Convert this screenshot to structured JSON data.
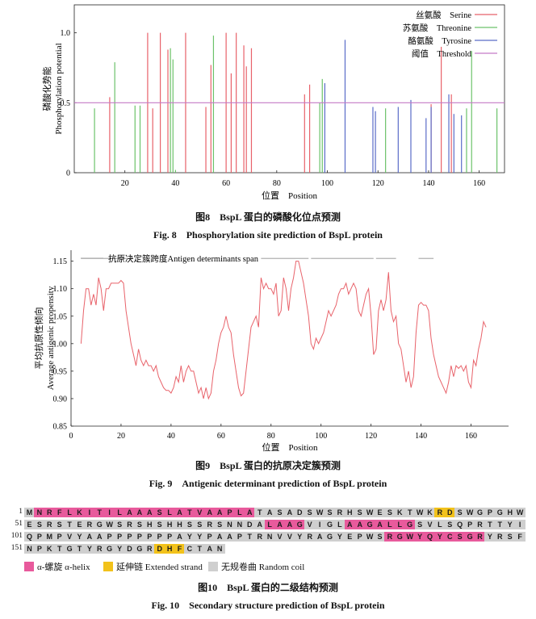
{
  "figures": [
    {
      "caption_cn": "图8　BspL 蛋白的磷酸化位点预测",
      "caption_en": "Fig. 8　Phosphorylation site prediction of BspL protein",
      "chart_data": {
        "type": "bar",
        "xlabel": "位置　Position",
        "ylabel_cn": "磷酸化势能",
        "ylabel_en": "Phosphorylation potential",
        "xticks": [
          20,
          40,
          60,
          80,
          100,
          120,
          140,
          160
        ],
        "yticks": [
          "0",
          "0.5",
          "1.0"
        ],
        "xlim": [
          0,
          170
        ],
        "ylim": [
          0,
          1.2
        ],
        "threshold": 0.5,
        "legend": [
          "丝氨酸　Serine",
          "苏氨酸　Threonine",
          "酪氨酸　Tyrosine",
          "阈值　Threshold"
        ],
        "colors": {
          "serine": "#e8626a",
          "threonine": "#6cc26a",
          "tyrosine": "#5a6cc8",
          "threshold": "#c47ac6"
        },
        "series": [
          {
            "name": "丝氨酸　Serine",
            "x": [
              14,
              29,
              31,
              34,
              37,
              44,
              52,
              54,
              60,
              62,
              64,
              67,
              68,
              70,
              91,
              93,
              141,
              145,
              149
            ],
            "values": [
              0.54,
              1.0,
              0.46,
              1.0,
              0.88,
              1.0,
              0.47,
              0.77,
              1.0,
              0.71,
              1.0,
              0.91,
              0.76,
              0.89,
              0.56,
              0.63,
              0.49,
              0.9,
              0.56
            ]
          },
          {
            "name": "苏氨酸　Threonine",
            "x": [
              8,
              16,
              24,
              26,
              38,
              39,
              40,
              55,
              97,
              98,
              99,
              123,
              155,
              157,
              167
            ],
            "values": [
              0.46,
              0.79,
              0.48,
              0.48,
              0.89,
              0.81,
              0.02,
              0.98,
              0.5,
              0.67,
              0.01,
              0.46,
              0.46,
              0.87,
              0.46
            ]
          },
          {
            "name": "酪氨酸　Tyrosine",
            "x": [
              99,
              107,
              118,
              119,
              128,
              133,
              139,
              141,
              148,
              150,
              153
            ],
            "values": [
              0.64,
              0.95,
              0.47,
              0.44,
              0.47,
              0.52,
              0.39,
              0.47,
              0.56,
              0.42,
              0.41
            ]
          }
        ]
      }
    },
    {
      "caption_cn": "图9　BspL 蛋白的抗原决定簇预测",
      "caption_en": "Fig. 9　Antigenic determinant prediction of BspL protein",
      "chart_data": {
        "type": "line",
        "xlabel": "位置　Position",
        "ylabel_cn": "平均抗原性倾向",
        "ylabel_en": "Average antigenic propensity",
        "legend": "抗原决定簇跨度Antigen determinants span",
        "xticks": [
          0,
          20,
          40,
          60,
          80,
          100,
          120,
          140,
          160
        ],
        "yticks": [
          "0.85",
          "0.90",
          "0.95",
          "1.00",
          "1.05",
          "1.10",
          "1.15"
        ],
        "xlim": [
          0,
          175
        ],
        "ylim": [
          0.85,
          1.17
        ],
        "colors": {
          "line": "#e8626a",
          "span": "#b0b0b0"
        },
        "spans": [
          [
            4,
            24
          ],
          [
            76,
            95
          ],
          [
            96,
            121
          ],
          [
            122,
            130
          ],
          [
            139,
            145
          ]
        ],
        "x": [
          4,
          5,
          6,
          7,
          8,
          9,
          10,
          11,
          12,
          13,
          14,
          15,
          16,
          17,
          18,
          19,
          20,
          21,
          22,
          23,
          24,
          25,
          26,
          27,
          28,
          29,
          30,
          31,
          32,
          33,
          34,
          35,
          36,
          37,
          38,
          39,
          40,
          41,
          42,
          43,
          44,
          45,
          46,
          47,
          48,
          49,
          50,
          51,
          52,
          53,
          54,
          55,
          56,
          57,
          58,
          59,
          60,
          61,
          62,
          63,
          64,
          65,
          66,
          67,
          68,
          69,
          70,
          71,
          72,
          73,
          74,
          75,
          76,
          77,
          78,
          79,
          80,
          81,
          82,
          83,
          84,
          85,
          86,
          87,
          88,
          89,
          90,
          91,
          92,
          93,
          94,
          95,
          96,
          97,
          98,
          99,
          100,
          101,
          102,
          103,
          104,
          105,
          106,
          107,
          108,
          109,
          110,
          111,
          112,
          113,
          114,
          115,
          116,
          117,
          118,
          119,
          120,
          121,
          122,
          123,
          124,
          125,
          126,
          127,
          128,
          129,
          130,
          131,
          132,
          133,
          134,
          135,
          136,
          137,
          138,
          139,
          140,
          141,
          142,
          143,
          144,
          145,
          146,
          147,
          148,
          149,
          150,
          151,
          152,
          153,
          154,
          155,
          156,
          157,
          158,
          159,
          160,
          161,
          162,
          163,
          164,
          165,
          166
        ],
        "values": [
          1.0,
          1.06,
          1.1,
          1.1,
          1.07,
          1.09,
          1.07,
          1.12,
          1.1,
          1.06,
          1.1,
          1.1,
          1.11,
          1.11,
          1.11,
          1.11,
          1.115,
          1.11,
          1.06,
          1.03,
          1.0,
          0.98,
          0.96,
          0.99,
          0.97,
          0.96,
          0.97,
          0.96,
          0.96,
          0.95,
          0.96,
          0.94,
          0.93,
          0.92,
          0.915,
          0.915,
          0.91,
          0.92,
          0.94,
          0.93,
          0.96,
          0.93,
          0.95,
          0.96,
          0.95,
          0.95,
          0.93,
          0.91,
          0.92,
          0.9,
          0.92,
          0.9,
          0.91,
          0.95,
          0.97,
          1.0,
          1.02,
          1.03,
          1.05,
          1.03,
          1.02,
          0.98,
          0.95,
          0.92,
          0.905,
          0.91,
          0.95,
          0.99,
          1.03,
          1.04,
          1.05,
          1.03,
          1.12,
          1.1,
          1.11,
          1.1,
          1.1,
          1.09,
          1.11,
          1.05,
          1.06,
          1.12,
          1.1,
          1.06,
          1.1,
          1.12,
          1.15,
          1.15,
          1.13,
          1.11,
          1.08,
          1.05,
          1.0,
          0.99,
          1.01,
          1.0,
          1.01,
          1.02,
          1.04,
          1.06,
          1.05,
          1.06,
          1.07,
          1.09,
          1.1,
          1.1,
          1.11,
          1.09,
          1.1,
          1.11,
          1.1,
          1.06,
          1.05,
          1.07,
          1.09,
          1.1,
          1.05,
          0.98,
          0.99,
          1.06,
          1.08,
          1.06,
          1.08,
          1.13,
          1.06,
          1.04,
          1.05,
          1.0,
          0.99,
          0.96,
          0.93,
          0.95,
          0.92,
          0.94,
          1.02,
          1.07,
          1.075,
          1.07,
          1.07,
          1.06,
          1.01,
          0.98,
          0.96,
          0.94,
          0.93,
          0.92,
          0.91,
          0.93,
          0.96,
          0.94,
          0.96,
          0.955,
          0.96,
          0.95,
          0.96,
          0.93,
          0.92,
          0.97,
          0.96,
          0.99,
          1.01,
          1.04,
          1.03
        ]
      }
    },
    {
      "caption_cn": "图10　BspL 蛋白的二级结构预测",
      "caption_en": "Fig. 10　Secondary structure prediction of BspL protein",
      "sequence_rows": [
        {
          "start": "1",
          "seq": "MNRFLKITILAAASLATVAAPLATASADSWSRHSWESKTWKRDSWGPGHW",
          "ss": "CHHHHHHHHHHHHHHHHHHHHHHCCCCCCCCCCCCCCCCCCEECCCCCCCC"
        },
        {
          "start": "51",
          "seq": "ESRSTERGWSRSHSHHSSRSNNDALAAGVIGLAAGALLGSVLSQPRTTYI",
          "ss": "CCCCCCCCCCCCCCCCCCCCCCCCHHHHCCCCHHHHHHHCCCCCCCCCCC"
        },
        {
          "start": "101",
          "seq": "QPMPVYAAPPPPPPPAYYPAAPTRNVVYRAGYEPWSRGWYQYCSGRYRSF",
          "ss": "CCCCCCCCCCCCCCCCCCCCCCCCCCCCCCCCCCCCHHHHHHHHHHCCCC"
        },
        {
          "start": "151",
          "seq": "NPKTGTYRGYDGRDHFCTAN",
          "ss": "CCCCCCCCCCCCCEEECCCC"
        }
      ],
      "legend": [
        {
          "key": "H",
          "label": "α-螺旋 α-helix",
          "color": "#e85a9c"
        },
        {
          "key": "E",
          "label": "延伸链 Extended strand",
          "color": "#f2c21b"
        },
        {
          "key": "C",
          "label": "无规卷曲 Random coil",
          "color": "#cfcfcf"
        }
      ]
    }
  ]
}
